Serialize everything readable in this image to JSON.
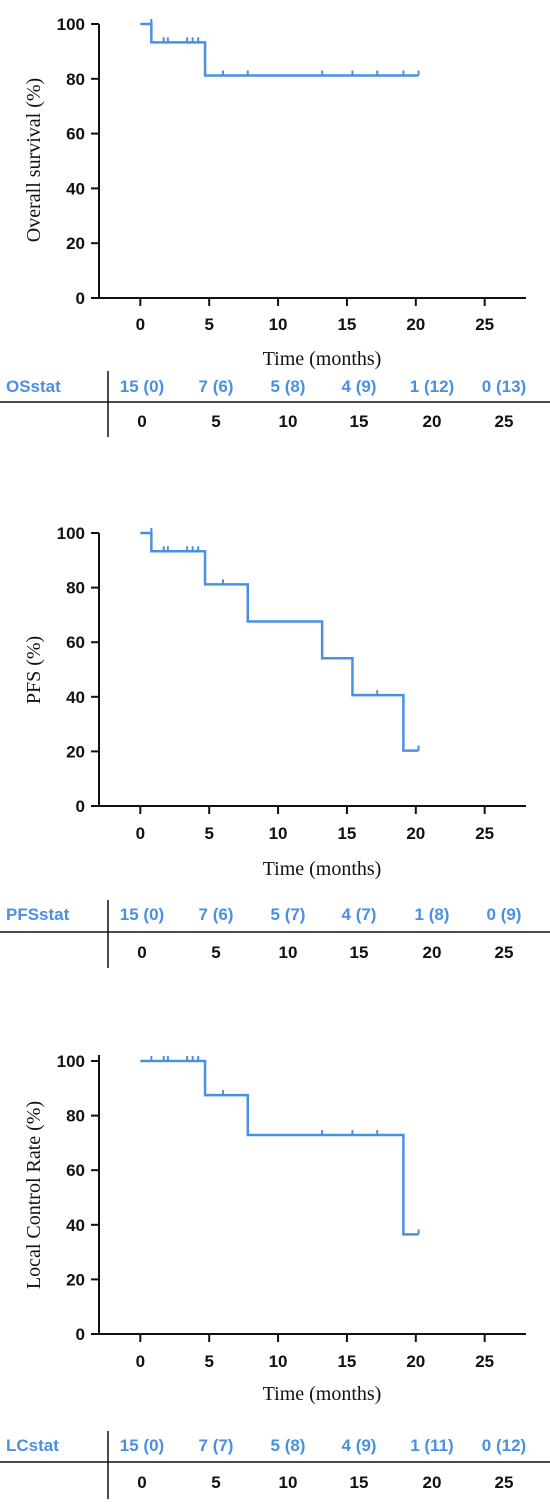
{
  "colors": {
    "curve": "#4a90e2",
    "axis": "#111111",
    "risk_text": "#4a90e2"
  },
  "chart_data": [
    {
      "type": "line",
      "step": true,
      "ylabel": "Overall survival (%)",
      "xlabel": "Time (months)",
      "xlim": [
        -3,
        28
      ],
      "ylim": [
        0,
        100
      ],
      "xticks": [
        0,
        5,
        10,
        15,
        20,
        25
      ],
      "yticks": [
        0,
        20,
        40,
        60,
        80,
        100
      ],
      "grid": false,
      "steps": [
        [
          0,
          100
        ],
        [
          0.8,
          100
        ],
        [
          0.8,
          93.3
        ],
        [
          4.7,
          93.3
        ],
        [
          4.7,
          81.2
        ],
        [
          20.2,
          81.2
        ]
      ],
      "censor_marks": [
        [
          0.8,
          100
        ],
        [
          1.7,
          93.3
        ],
        [
          2.0,
          93.3
        ],
        [
          3.4,
          93.3
        ],
        [
          3.8,
          93.3
        ],
        [
          4.2,
          93.3
        ],
        [
          6.0,
          81.2
        ],
        [
          7.8,
          81.2
        ],
        [
          13.2,
          81.2
        ],
        [
          15.4,
          81.2
        ],
        [
          17.2,
          81.2
        ],
        [
          19.1,
          81.2
        ],
        [
          20.2,
          81.2
        ]
      ],
      "risk_table": {
        "label": "OSstat",
        "values": [
          "15 (0)",
          "7 (6)",
          "5 (8)",
          "4 (9)",
          "1 (12)",
          "0 (13)"
        ],
        "times": [
          "0",
          "5",
          "10",
          "15",
          "20",
          "25"
        ]
      }
    },
    {
      "type": "line",
      "step": true,
      "ylabel": "PFS (%)",
      "xlabel": "Time (months)",
      "xlim": [
        -3,
        28
      ],
      "ylim": [
        0,
        100
      ],
      "xticks": [
        0,
        5,
        10,
        15,
        20,
        25
      ],
      "yticks": [
        0,
        20,
        40,
        60,
        80,
        100
      ],
      "grid": false,
      "steps": [
        [
          0,
          100
        ],
        [
          0.8,
          100
        ],
        [
          0.8,
          93.3
        ],
        [
          4.7,
          93.3
        ],
        [
          4.7,
          81.2
        ],
        [
          7.8,
          81.2
        ],
        [
          7.8,
          67.6
        ],
        [
          13.2,
          67.6
        ],
        [
          13.2,
          54.1
        ],
        [
          15.4,
          54.1
        ],
        [
          15.4,
          40.6
        ],
        [
          19.1,
          40.6
        ],
        [
          19.1,
          20.3
        ],
        [
          20.2,
          20.3
        ]
      ],
      "censor_marks": [
        [
          0.8,
          100
        ],
        [
          1.7,
          93.3
        ],
        [
          2.0,
          93.3
        ],
        [
          3.4,
          93.3
        ],
        [
          3.8,
          93.3
        ],
        [
          4.2,
          93.3
        ],
        [
          6.0,
          81.2
        ],
        [
          17.2,
          40.6
        ],
        [
          20.2,
          20.3
        ]
      ],
      "risk_table": {
        "label": "PFSstat",
        "values": [
          "15 (0)",
          "7 (6)",
          "5 (7)",
          "4 (7)",
          "1 (8)",
          "0 (9)"
        ],
        "times": [
          "0",
          "5",
          "10",
          "15",
          "20",
          "25"
        ]
      }
    },
    {
      "type": "line",
      "step": true,
      "ylabel": "Local Control Rate (%)",
      "xlabel": "Time (months)",
      "xlim": [
        -3,
        28
      ],
      "ylim": [
        0,
        100
      ],
      "xticks": [
        0,
        5,
        10,
        15,
        20,
        25
      ],
      "yticks": [
        0,
        20,
        40,
        60,
        80,
        100
      ],
      "grid": false,
      "steps": [
        [
          0,
          100
        ],
        [
          4.7,
          100
        ],
        [
          4.7,
          87.5
        ],
        [
          7.8,
          87.5
        ],
        [
          7.8,
          72.9
        ],
        [
          19.1,
          72.9
        ],
        [
          19.1,
          36.5
        ],
        [
          20.2,
          36.5
        ]
      ],
      "censor_marks": [
        [
          0.8,
          100
        ],
        [
          1.7,
          100
        ],
        [
          2.0,
          100
        ],
        [
          3.4,
          100
        ],
        [
          3.8,
          100
        ],
        [
          4.2,
          100
        ],
        [
          6.0,
          87.5
        ],
        [
          13.2,
          72.9
        ],
        [
          15.4,
          72.9
        ],
        [
          17.2,
          72.9
        ],
        [
          20.2,
          36.5
        ]
      ],
      "risk_table": {
        "label": "LCstat",
        "values": [
          "15 (0)",
          "7 (7)",
          "5 (8)",
          "4 (9)",
          "1 (11)",
          "0 (12)"
        ],
        "times": [
          "0",
          "5",
          "10",
          "15",
          "20",
          "25"
        ]
      }
    }
  ]
}
